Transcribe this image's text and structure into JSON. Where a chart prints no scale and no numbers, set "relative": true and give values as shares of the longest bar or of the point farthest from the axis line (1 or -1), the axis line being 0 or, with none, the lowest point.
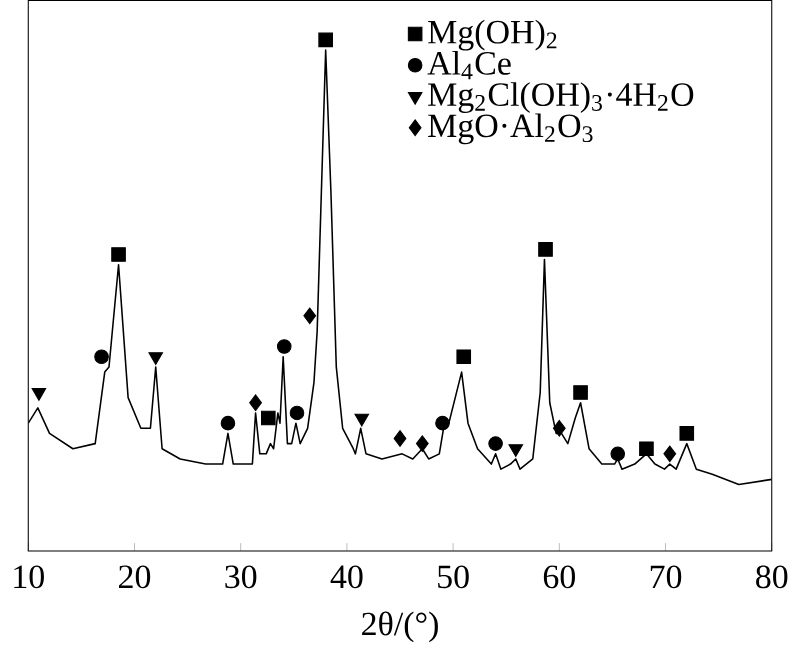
{
  "chart_data": {
    "type": "line",
    "relative": true,
    "xlabel": "2θ/(°)",
    "xlim": [
      10,
      80
    ],
    "xticks": [
      10,
      20,
      30,
      40,
      50,
      60,
      70,
      80
    ],
    "legend": "top right",
    "series": [
      {
        "color": "#000000",
        "marker": "none",
        "x": [
          10,
          10.9,
          12,
          14.2,
          16.3,
          17.2,
          17.6,
          18.5,
          19.4,
          20.6,
          21.5,
          22.0,
          22.6,
          24.3,
          26.7,
          28.3,
          28.8,
          29.3,
          31.1,
          31.4,
          31.8,
          32.4,
          32.8,
          33.1,
          33.5,
          33.7,
          34.0,
          34.4,
          34.8,
          35.2,
          35.6,
          36.3,
          36.9,
          37.2,
          38.0,
          38.5,
          39.0,
          39.6,
          40.6,
          40.8,
          41.3,
          41.8,
          43.3,
          45.2,
          46.2,
          47.1,
          47.7,
          48.7,
          49.1,
          49.6,
          50.8,
          51.4,
          52.3,
          53.6,
          54.0,
          54.5,
          55.4,
          55.9,
          56.3,
          57.5,
          58.2,
          58.6,
          59.1,
          59.7,
          60.2,
          60.8,
          61.5,
          62.0,
          62.8,
          64.0,
          65.2,
          65.5,
          65.9,
          67.1,
          68.2,
          69.0,
          69.9,
          70.4,
          71.0,
          72.0,
          72.9,
          74.4,
          76.9,
          80.0
        ],
        "values": [
          0.25,
          0.28,
          0.23,
          0.2,
          0.21,
          0.35,
          0.36,
          0.56,
          0.3,
          0.24,
          0.24,
          0.36,
          0.2,
          0.18,
          0.17,
          0.17,
          0.23,
          0.17,
          0.17,
          0.27,
          0.19,
          0.19,
          0.21,
          0.2,
          0.27,
          0.25,
          0.38,
          0.21,
          0.21,
          0.25,
          0.21,
          0.24,
          0.33,
          0.43,
          0.98,
          0.7,
          0.36,
          0.24,
          0.2,
          0.19,
          0.24,
          0.19,
          0.18,
          0.19,
          0.18,
          0.2,
          0.18,
          0.19,
          0.24,
          0.25,
          0.35,
          0.25,
          0.2,
          0.17,
          0.19,
          0.16,
          0.17,
          0.18,
          0.16,
          0.18,
          0.31,
          0.57,
          0.29,
          0.23,
          0.23,
          0.21,
          0.26,
          0.29,
          0.2,
          0.17,
          0.17,
          0.18,
          0.16,
          0.17,
          0.19,
          0.17,
          0.16,
          0.17,
          0.16,
          0.21,
          0.16,
          0.15,
          0.13,
          0.14
        ]
      },
      {
        "type": "scatter",
        "name": "Mg(OH)$_{2}$",
        "color": "#000000",
        "marker": "square",
        "x": [
          18.5,
          32.6,
          38.0,
          51.0,
          58.7,
          62.0,
          68.2,
          72.0
        ],
        "values": [
          0.58,
          0.26,
          1.0,
          0.38,
          0.59,
          0.31,
          0.2,
          0.23
        ]
      },
      {
        "type": "scatter",
        "name": "Al$_{4}$Ce",
        "color": "#000000",
        "marker": "circle",
        "x": [
          16.9,
          28.8,
          34.1,
          35.3,
          49.0,
          54.0,
          65.5
        ],
        "values": [
          0.38,
          0.25,
          0.4,
          0.27,
          0.25,
          0.21,
          0.19
        ]
      },
      {
        "type": "scatter",
        "name": "Mg$_{2}$Cl(OH)$_{3}$·4H$_{2}$O",
        "color": "#000000",
        "marker": "triangle",
        "x": [
          11.0,
          22.0,
          41.4,
          55.9
        ],
        "values": [
          0.31,
          0.38,
          0.26,
          0.2
        ]
      },
      {
        "type": "scatter",
        "name": "MgO·Al$_{2}$O$_{3}$",
        "color": "#000000",
        "marker": "diamond",
        "x": [
          31.4,
          36.5,
          45.0,
          47.1,
          60.0,
          70.4
        ],
        "values": [
          0.29,
          0.46,
          0.22,
          0.21,
          0.24,
          0.19
        ]
      }
    ]
  }
}
